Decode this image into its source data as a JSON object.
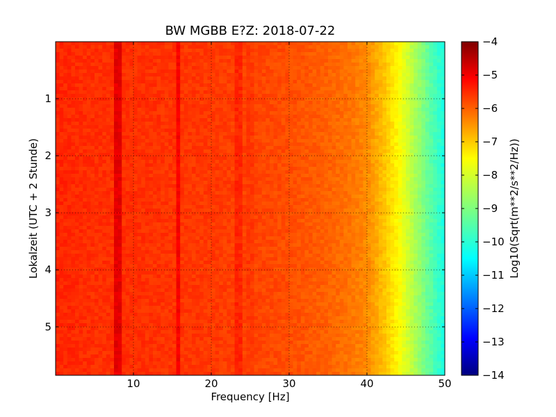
{
  "chart_data": {
    "type": "heatmap",
    "title": "BW MGBB E?Z: 2018-07-22",
    "xlabel": "Frequency [Hz]",
    "ylabel": "Lokalzeit (UTC + 2 Stunde)",
    "colorbar_label": "Log10(Sqrt(m**2/s**2/Hz))",
    "x_range": [
      0,
      50
    ],
    "y_range": [
      0,
      5.85
    ],
    "y_inverted": true,
    "x_ticks": [
      10,
      20,
      30,
      40,
      50
    ],
    "y_ticks": [
      1,
      2,
      3,
      4,
      5
    ],
    "colorbar_range": [
      -14,
      -4
    ],
    "colorbar_ticks": [
      -4,
      -5,
      -6,
      -7,
      -8,
      -9,
      -10,
      -11,
      -12,
      -13,
      -14
    ],
    "colormap": "jet",
    "grid": true,
    "spectrum_profile": {
      "frequency_hz": [
        0,
        5,
        10,
        20,
        30,
        35,
        38,
        40,
        42,
        44,
        46,
        48,
        50
      ],
      "log10_amplitude": [
        -5.6,
        -5.7,
        -5.7,
        -5.8,
        -6.0,
        -6.2,
        -6.4,
        -6.6,
        -7.1,
        -7.7,
        -8.5,
        -9.3,
        -10.0
      ]
    },
    "spectral_lines": [
      {
        "frequency_hz": 8.0,
        "log10_amplitude": -5.0
      },
      {
        "frequency_hz": 15.7,
        "log10_amplitude": -5.2
      },
      {
        "frequency_hz": 23.6,
        "log10_amplitude": -5.6
      },
      {
        "frequency_hz": 24.9,
        "log10_amplitude": -5.8
      }
    ]
  }
}
